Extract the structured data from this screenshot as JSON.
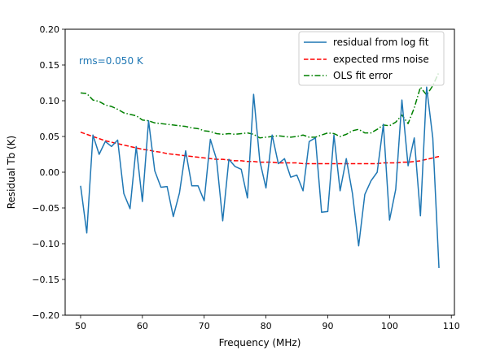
{
  "chart_data": {
    "type": "line",
    "title": "",
    "xlabel": "Frequency (MHz)",
    "ylabel": "Residual Tb (K)",
    "xlim": [
      47.5,
      110.5
    ],
    "ylim": [
      -0.2,
      0.2
    ],
    "xticks": [
      50,
      60,
      70,
      80,
      90,
      100,
      110
    ],
    "xtick_labels": [
      "50",
      "60",
      "70",
      "80",
      "90",
      "100",
      "110"
    ],
    "yticks": [
      -0.2,
      -0.15,
      -0.1,
      -0.05,
      0.0,
      0.05,
      0.1,
      0.15,
      0.2
    ],
    "ytick_labels": [
      "−0.20",
      "−0.15",
      "−0.10",
      "−0.05",
      "0.00",
      "0.05",
      "0.10",
      "0.15",
      "0.20"
    ],
    "grid": false,
    "legend_position": "top-right",
    "annotation": {
      "text": "rms=0.050 K",
      "color": "#1f77b4"
    },
    "x": [
      50,
      51,
      52,
      53,
      54,
      55,
      56,
      57,
      58,
      59,
      60,
      61,
      62,
      63,
      64,
      65,
      66,
      67,
      68,
      69,
      70,
      71,
      72,
      73,
      74,
      75,
      76,
      77,
      78,
      79,
      80,
      81,
      82,
      83,
      84,
      85,
      86,
      87,
      88,
      89,
      90,
      91,
      92,
      93,
      94,
      95,
      96,
      97,
      98,
      99,
      100,
      101,
      102,
      103,
      104,
      105,
      106,
      107,
      108
    ],
    "series": [
      {
        "name": "residual from log fit",
        "color": "#1f77b4",
        "dash": "solid",
        "values": [
          -0.019,
          -0.085,
          0.052,
          0.025,
          0.043,
          0.036,
          0.045,
          -0.03,
          -0.051,
          0.036,
          -0.041,
          0.072,
          0.002,
          -0.021,
          -0.02,
          -0.062,
          -0.029,
          0.03,
          -0.019,
          -0.019,
          -0.04,
          0.046,
          0.018,
          -0.068,
          0.018,
          0.008,
          0.004,
          -0.036,
          0.109,
          0.016,
          -0.022,
          0.052,
          0.012,
          0.019,
          -0.007,
          -0.004,
          -0.026,
          0.043,
          0.048,
          -0.056,
          -0.055,
          0.052,
          -0.026,
          0.019,
          -0.03,
          -0.103,
          -0.031,
          -0.012,
          0.0,
          0.067,
          -0.067,
          -0.024,
          0.101,
          0.009,
          0.048,
          -0.061,
          0.119,
          0.048,
          -0.134
        ]
      },
      {
        "name": "expected rms noise",
        "color": "#ff0000",
        "dash": "dashed",
        "values": [
          0.056,
          0.053,
          0.05,
          0.047,
          0.044,
          0.042,
          0.04,
          0.038,
          0.036,
          0.034,
          0.032,
          0.031,
          0.029,
          0.028,
          0.026,
          0.025,
          0.024,
          0.023,
          0.022,
          0.021,
          0.02,
          0.019,
          0.018,
          0.018,
          0.017,
          0.016,
          0.016,
          0.015,
          0.015,
          0.014,
          0.014,
          0.014,
          0.013,
          0.013,
          0.013,
          0.013,
          0.012,
          0.012,
          0.012,
          0.012,
          0.012,
          0.012,
          0.012,
          0.012,
          0.012,
          0.012,
          0.012,
          0.012,
          0.012,
          0.013,
          0.013,
          0.013,
          0.014,
          0.014,
          0.015,
          0.016,
          0.018,
          0.02,
          0.022
        ]
      },
      {
        "name": "OLS fit error",
        "color": "#008000",
        "dash": "dashdot",
        "values": [
          0.111,
          0.11,
          0.101,
          0.099,
          0.094,
          0.092,
          0.088,
          0.083,
          0.081,
          0.079,
          0.073,
          0.072,
          0.069,
          0.068,
          0.067,
          0.066,
          0.065,
          0.064,
          0.062,
          0.061,
          0.058,
          0.057,
          0.054,
          0.053,
          0.054,
          0.053,
          0.054,
          0.055,
          0.053,
          0.048,
          0.049,
          0.05,
          0.051,
          0.05,
          0.049,
          0.05,
          0.052,
          0.049,
          0.049,
          0.052,
          0.055,
          0.054,
          0.05,
          0.053,
          0.058,
          0.06,
          0.055,
          0.055,
          0.06,
          0.066,
          0.065,
          0.07,
          0.08,
          0.068,
          0.09,
          0.119,
          0.108,
          0.121,
          0.14
        ]
      }
    ]
  }
}
